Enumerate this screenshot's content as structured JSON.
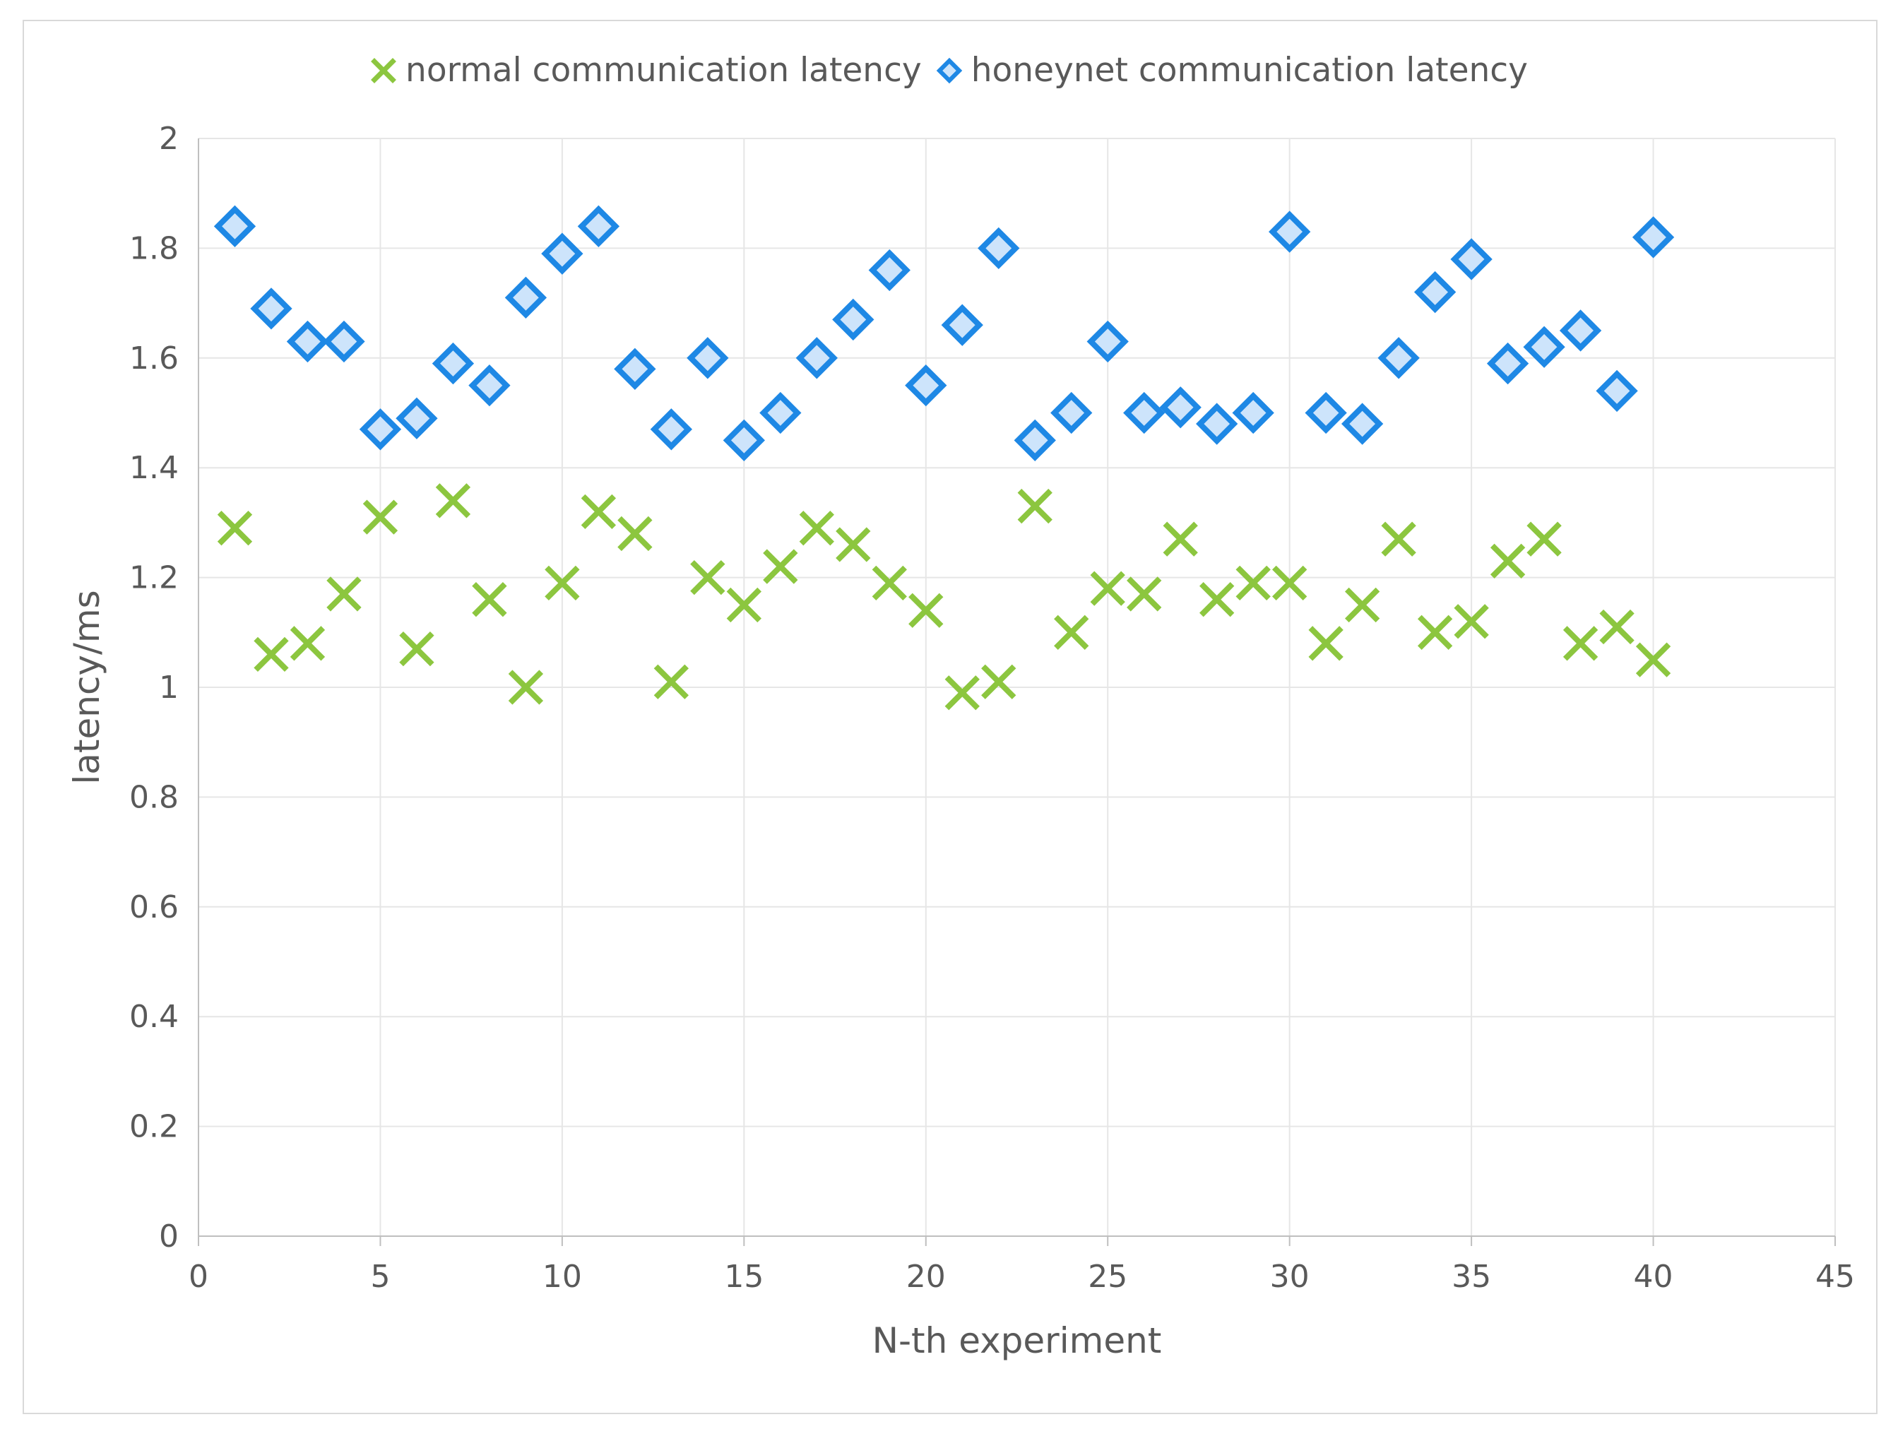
{
  "chart_data": {
    "type": "scatter",
    "xlabel": "N-th experiment",
    "ylabel": "latency/ms",
    "xlim": [
      0,
      45
    ],
    "ylim": [
      0,
      2
    ],
    "xticks": [
      0,
      5,
      10,
      15,
      20,
      25,
      30,
      35,
      40,
      45
    ],
    "yticks": [
      0,
      0.2,
      0.4,
      0.6,
      0.8,
      1,
      1.2,
      1.4,
      1.6,
      1.8,
      2
    ],
    "grid": true,
    "legend_position": "top-center",
    "series": [
      {
        "name": "normal communication latency",
        "marker": "x",
        "color": "#8cc63f",
        "x": [
          1,
          2,
          3,
          4,
          5,
          6,
          7,
          8,
          9,
          10,
          11,
          12,
          13,
          14,
          15,
          16,
          17,
          18,
          19,
          20,
          21,
          22,
          23,
          24,
          25,
          26,
          27,
          28,
          29,
          30,
          31,
          32,
          33,
          34,
          35,
          36,
          37,
          38,
          39,
          40
        ],
        "y": [
          1.29,
          1.06,
          1.08,
          1.17,
          1.31,
          1.07,
          1.34,
          1.16,
          1.0,
          1.19,
          1.32,
          1.28,
          1.01,
          1.2,
          1.15,
          1.22,
          1.29,
          1.26,
          1.19,
          1.14,
          0.99,
          1.01,
          1.33,
          1.1,
          1.18,
          1.17,
          1.27,
          1.16,
          1.19,
          1.19,
          1.08,
          1.15,
          1.27,
          1.1,
          1.12,
          1.23,
          1.27,
          1.08,
          1.11,
          1.05
        ]
      },
      {
        "name": "honeynet communication latency",
        "marker": "diamond",
        "color": "#1e88e5",
        "fill": "#cde4fb",
        "x": [
          1,
          2,
          3,
          4,
          5,
          6,
          7,
          8,
          9,
          10,
          11,
          12,
          13,
          14,
          15,
          16,
          17,
          18,
          19,
          20,
          21,
          22,
          23,
          24,
          25,
          26,
          27,
          28,
          29,
          30,
          31,
          32,
          33,
          34,
          35,
          36,
          37,
          38,
          39,
          40
        ],
        "y": [
          1.84,
          1.69,
          1.63,
          1.63,
          1.47,
          1.49,
          1.59,
          1.55,
          1.71,
          1.79,
          1.84,
          1.58,
          1.47,
          1.6,
          1.45,
          1.5,
          1.6,
          1.67,
          1.76,
          1.55,
          1.66,
          1.8,
          1.45,
          1.5,
          1.63,
          1.5,
          1.51,
          1.48,
          1.5,
          1.83,
          1.5,
          1.48,
          1.6,
          1.72,
          1.78,
          1.59,
          1.62,
          1.65,
          1.54,
          1.82
        ]
      }
    ]
  }
}
